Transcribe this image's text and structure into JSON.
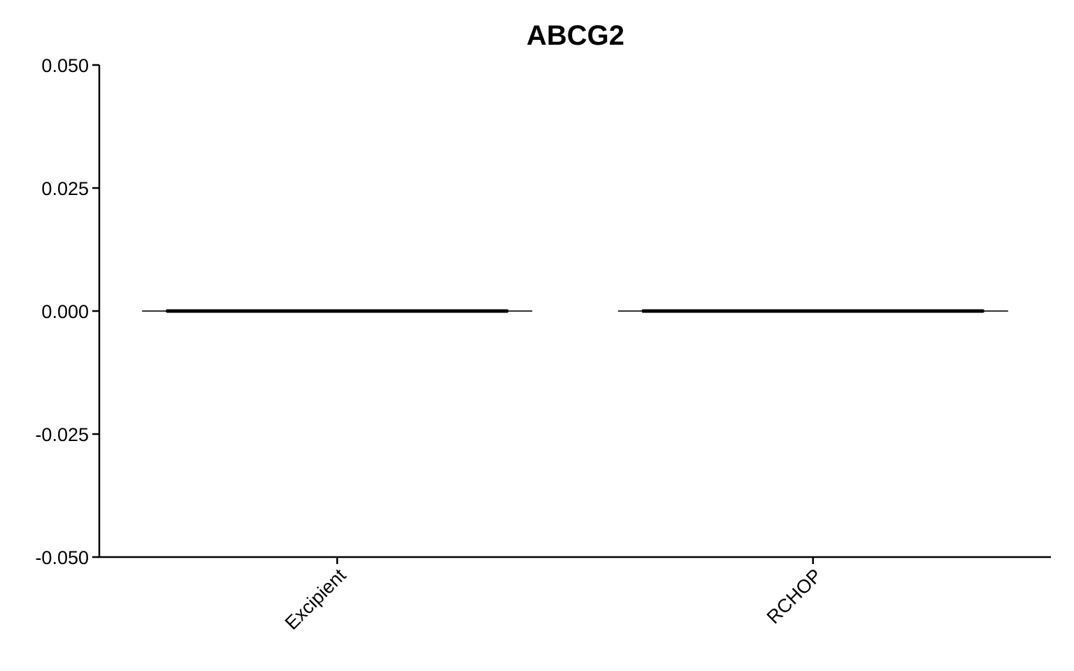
{
  "chart_data": {
    "type": "violin",
    "title": "ABCG2",
    "xlabel": "",
    "ylabel": "",
    "categories": [
      "Excipient",
      "RCHOP"
    ],
    "series": [
      {
        "values": [
          0,
          0
        ]
      }
    ],
    "ylim": [
      -0.05,
      0.05
    ],
    "yticks": [
      {
        "value": 0.05,
        "label": "0.050"
      },
      {
        "value": 0.025,
        "label": "0.025"
      },
      {
        "value": 0,
        "label": "0.000"
      },
      {
        "value": -0.025,
        "label": "-0.025"
      },
      {
        "value": -0.05,
        "label": "-0.050"
      }
    ],
    "grid": false,
    "legend": "none",
    "colors": {
      "axis": "#000000",
      "violin_outline": "#333333",
      "points": "#000000"
    }
  }
}
